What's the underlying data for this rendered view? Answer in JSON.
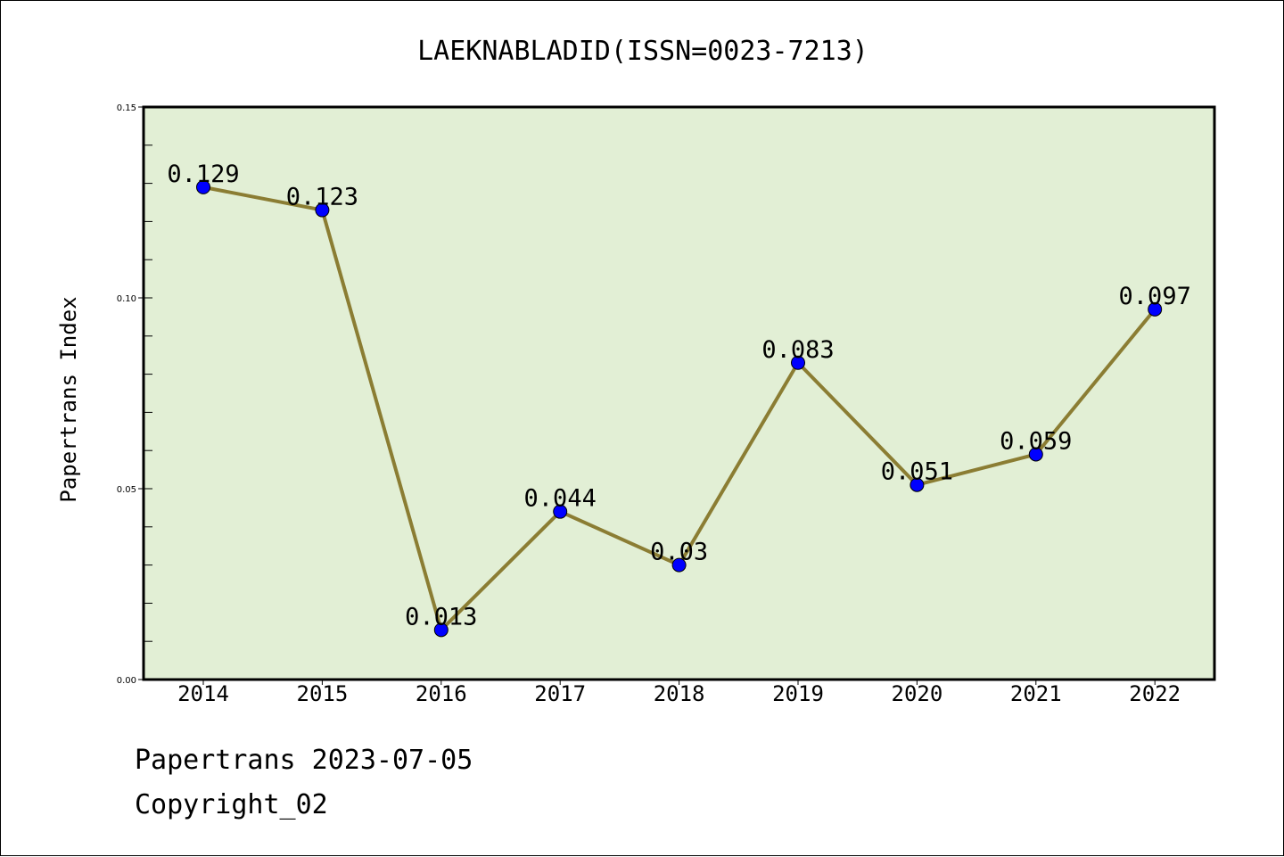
{
  "chart_data": {
    "type": "line",
    "title": "LAEKNABLADID(ISSN=0023-7213)",
    "xlabel": "",
    "ylabel": "Papertrans Index",
    "categories": [
      "2014",
      "2015",
      "2016",
      "2017",
      "2018",
      "2019",
      "2020",
      "2021",
      "2022"
    ],
    "series": [
      {
        "name": "Papertrans Index",
        "values": [
          0.129,
          0.123,
          0.013,
          0.044,
          0.03,
          0.083,
          0.051,
          0.059,
          0.097
        ],
        "labels": [
          "0.129",
          "0.123",
          "0.013",
          "0.044",
          "0.03",
          "0.083",
          "0.051",
          "0.059",
          "0.097"
        ]
      }
    ],
    "ylim": [
      0,
      0.15
    ],
    "yticks": [
      0.0,
      0.05,
      0.1,
      0.15
    ],
    "ytick_labels": [
      "0.00",
      "0.05",
      "0.10",
      "0.15"
    ],
    "y_minor_step": 0.01,
    "grid": false,
    "legend": "none"
  },
  "colors": {
    "plot_background": "#e2efd5",
    "line": "#8b7d33",
    "marker": "#0000ff",
    "axis": "#000000"
  },
  "footer": {
    "line1": "Papertrans 2023-07-05",
    "line2": "Copyright_02"
  }
}
